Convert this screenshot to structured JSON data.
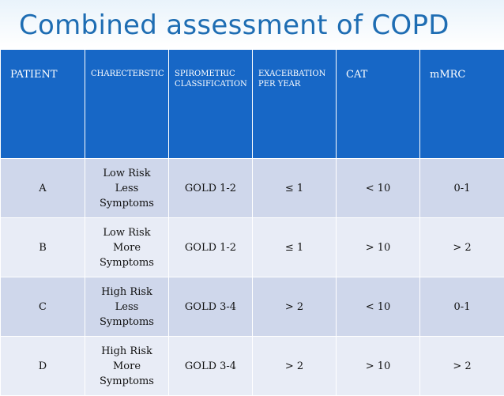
{
  "title": "Combined assessment of COPD",
  "headers": [
    "PATIENT",
    "CHARECTERSTIC",
    "SPIROMETRIC CLASSIFICATION",
    "EXACERBATION PER YEAR",
    "CAT",
    "mMRC"
  ],
  "rows": [
    {
      "patient": "A",
      "char1": "Low Risk",
      "char2": "Less",
      "char3": "Symptoms",
      "spiro": "GOLD 1-2",
      "exac": "≤ 1",
      "cat": "< 10",
      "mmrc": "0-1"
    },
    {
      "patient": "B",
      "char1": "Low Risk",
      "char2": "More",
      "char3": "Symptoms",
      "spiro": "GOLD 1-2",
      "exac": "≤ 1",
      "cat": "> 10",
      "mmrc": "> 2"
    },
    {
      "patient": "C",
      "char1": "High Risk",
      "char2": "Less",
      "char3": "Symptoms",
      "spiro": "GOLD 3-4",
      "exac": "> 2",
      "cat": "< 10",
      "mmrc": "0-1"
    },
    {
      "patient": "D",
      "char1": "High Risk",
      "char2": "More",
      "char3": "Symptoms",
      "spiro": "GOLD 3-4",
      "exac": "> 2",
      "cat": "> 10",
      "mmrc": "> 2"
    }
  ]
}
